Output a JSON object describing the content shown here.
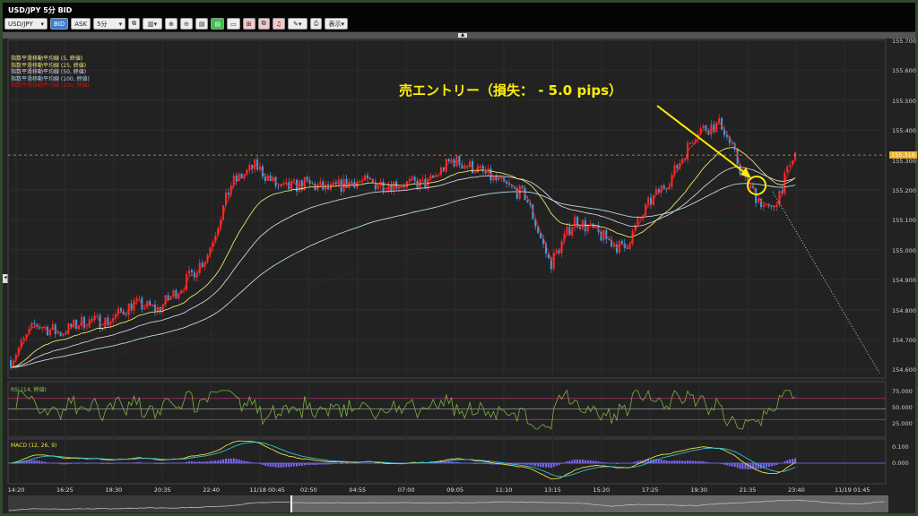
{
  "window": {
    "title": "USD/JPY 5分 BID"
  },
  "toolbar": {
    "symbol": "USD/JPY",
    "bid": "BID",
    "ask": "ASK",
    "timeframe": "5分",
    "display": "表示"
  },
  "legend": [
    {
      "label": "指数平滑移動平均線 (5, 終値)",
      "color": "#f0e68c"
    },
    {
      "label": "指数平滑移動平均線 (25, 終値)",
      "color": "#e8e070"
    },
    {
      "label": "指数平滑移動平均線 (50, 終値)",
      "color": "#e0c8e8"
    },
    {
      "label": "指数平滑移動平均線 (100, 終値)",
      "color": "#a8d8e8"
    },
    {
      "label": "指数平滑移動平均線 (200, 終値)",
      "color": "#cc1111"
    }
  ],
  "annotation": {
    "text": "売エントリー（損失： - 5.0 pips）",
    "color": "#ffee00"
  },
  "price_axis": {
    "ticks": [
      "155.700",
      "155.600",
      "155.500",
      "155.400",
      "155.300",
      "155.200",
      "155.100",
      "155.000",
      "154.900",
      "154.800",
      "154.700",
      "154.600"
    ],
    "last_price": "155.316",
    "range": [
      154.6,
      155.7
    ]
  },
  "time_axis": [
    "14:20",
    "16:25",
    "18:30",
    "20:35",
    "22:40",
    "11/18 00:45",
    "02:50",
    "04:55",
    "07:00",
    "09:05",
    "11:10",
    "13:15",
    "15:20",
    "17:25",
    "19:30",
    "21:35",
    "23:40",
    "11/19 01:45"
  ],
  "rsi": {
    "label": "RSI (14, 終値)",
    "ticks": [
      "75.000",
      "50.000",
      "25.000"
    ],
    "levels": [
      70,
      50,
      30
    ]
  },
  "macd": {
    "label": "MACD (12, 26, 9)",
    "ticks": [
      "0.100",
      "0.000"
    ]
  },
  "chart_data": {
    "type": "candlestick",
    "closes_sampled": [
      154.63,
      154.75,
      154.72,
      154.76,
      154.76,
      154.82,
      154.8,
      154.88,
      154.98,
      155.22,
      155.28,
      155.2,
      155.22,
      155.2,
      155.23,
      155.22,
      155.22,
      155.22,
      155.3,
      155.27,
      155.22,
      155.18,
      154.95,
      155.1,
      155.05,
      155.0,
      155.15,
      155.25,
      155.4,
      155.42,
      155.22,
      155.12,
      155.32
    ],
    "colors": {
      "up": "#ff2a2a",
      "down": "#3aa0e8"
    }
  }
}
